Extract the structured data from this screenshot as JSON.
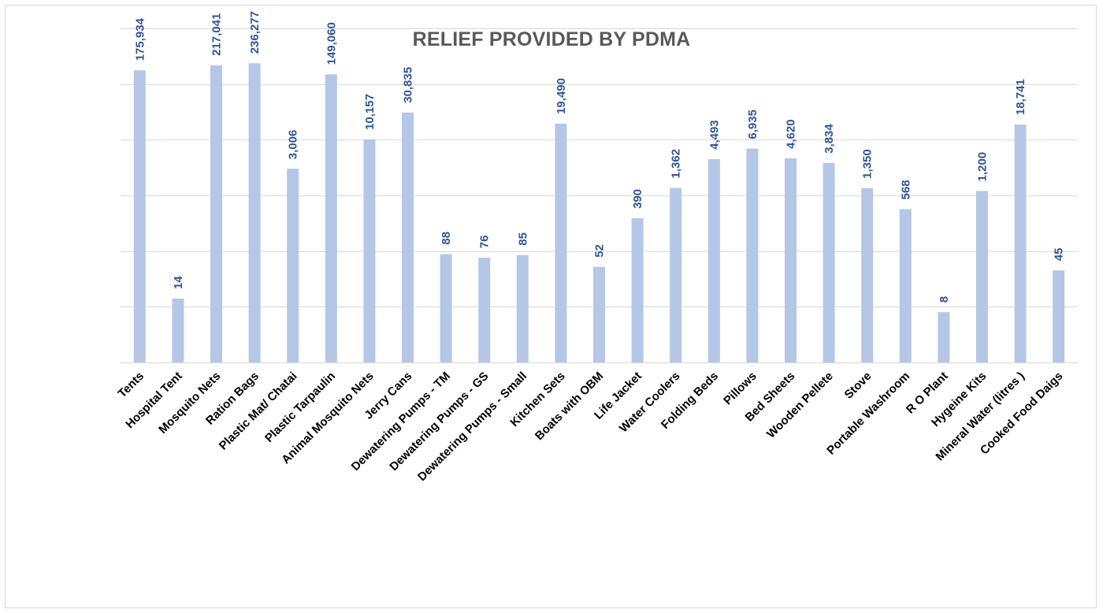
{
  "chart_data": {
    "type": "bar",
    "title": "RELIEF PROVIDED BY PDMA",
    "xlabel": "",
    "ylabel": "",
    "grid": true,
    "legend": "none",
    "bar_color": "#b4c7e7",
    "label_color": "#2f5597",
    "categories": [
      "Tents",
      "Hospital Tent",
      "Mosquito Nets",
      "Ration Bags",
      "Plastic Mat/ Chatai",
      "Plastic Tarpaulin",
      "Animal Mosquito Nets",
      "Jerry Cans",
      "Dewatering Pumps - TM",
      "Dewatering Pumps - GS",
      "Dewatering Pumps - Small",
      "Kitchen Sets",
      "Boats with OBM",
      "Life Jacket",
      "Water Coolers",
      "Folding Beds",
      "Pillows",
      "Bed Sheets",
      "Wooden Pellete",
      "Stove",
      "Portable Washroom",
      "R O Plant",
      "Hygeine Kits",
      "Mineral Water (litres )",
      "Cooked Food Daigs"
    ],
    "values": [
      175934,
      14,
      217041,
      236277,
      3006,
      149060,
      10157,
      30835,
      88,
      76,
      85,
      19490,
      52,
      390,
      1362,
      4493,
      6935,
      4620,
      3834,
      1350,
      568,
      8,
      1200,
      18741,
      45
    ],
    "value_labels": [
      "175,934",
      "14",
      "217,041",
      "236,277",
      "3,006",
      "149,060",
      "10,157",
      "30,835",
      "88",
      "76",
      "85",
      "19,490",
      "52",
      "390",
      "1,362",
      "4,493",
      "6,935",
      "4,620",
      "3,834",
      "1,350",
      "568",
      "8",
      "1,200",
      "18,741",
      "45"
    ],
    "scale": "log",
    "ylim": [
      1,
      1000000
    ]
  }
}
